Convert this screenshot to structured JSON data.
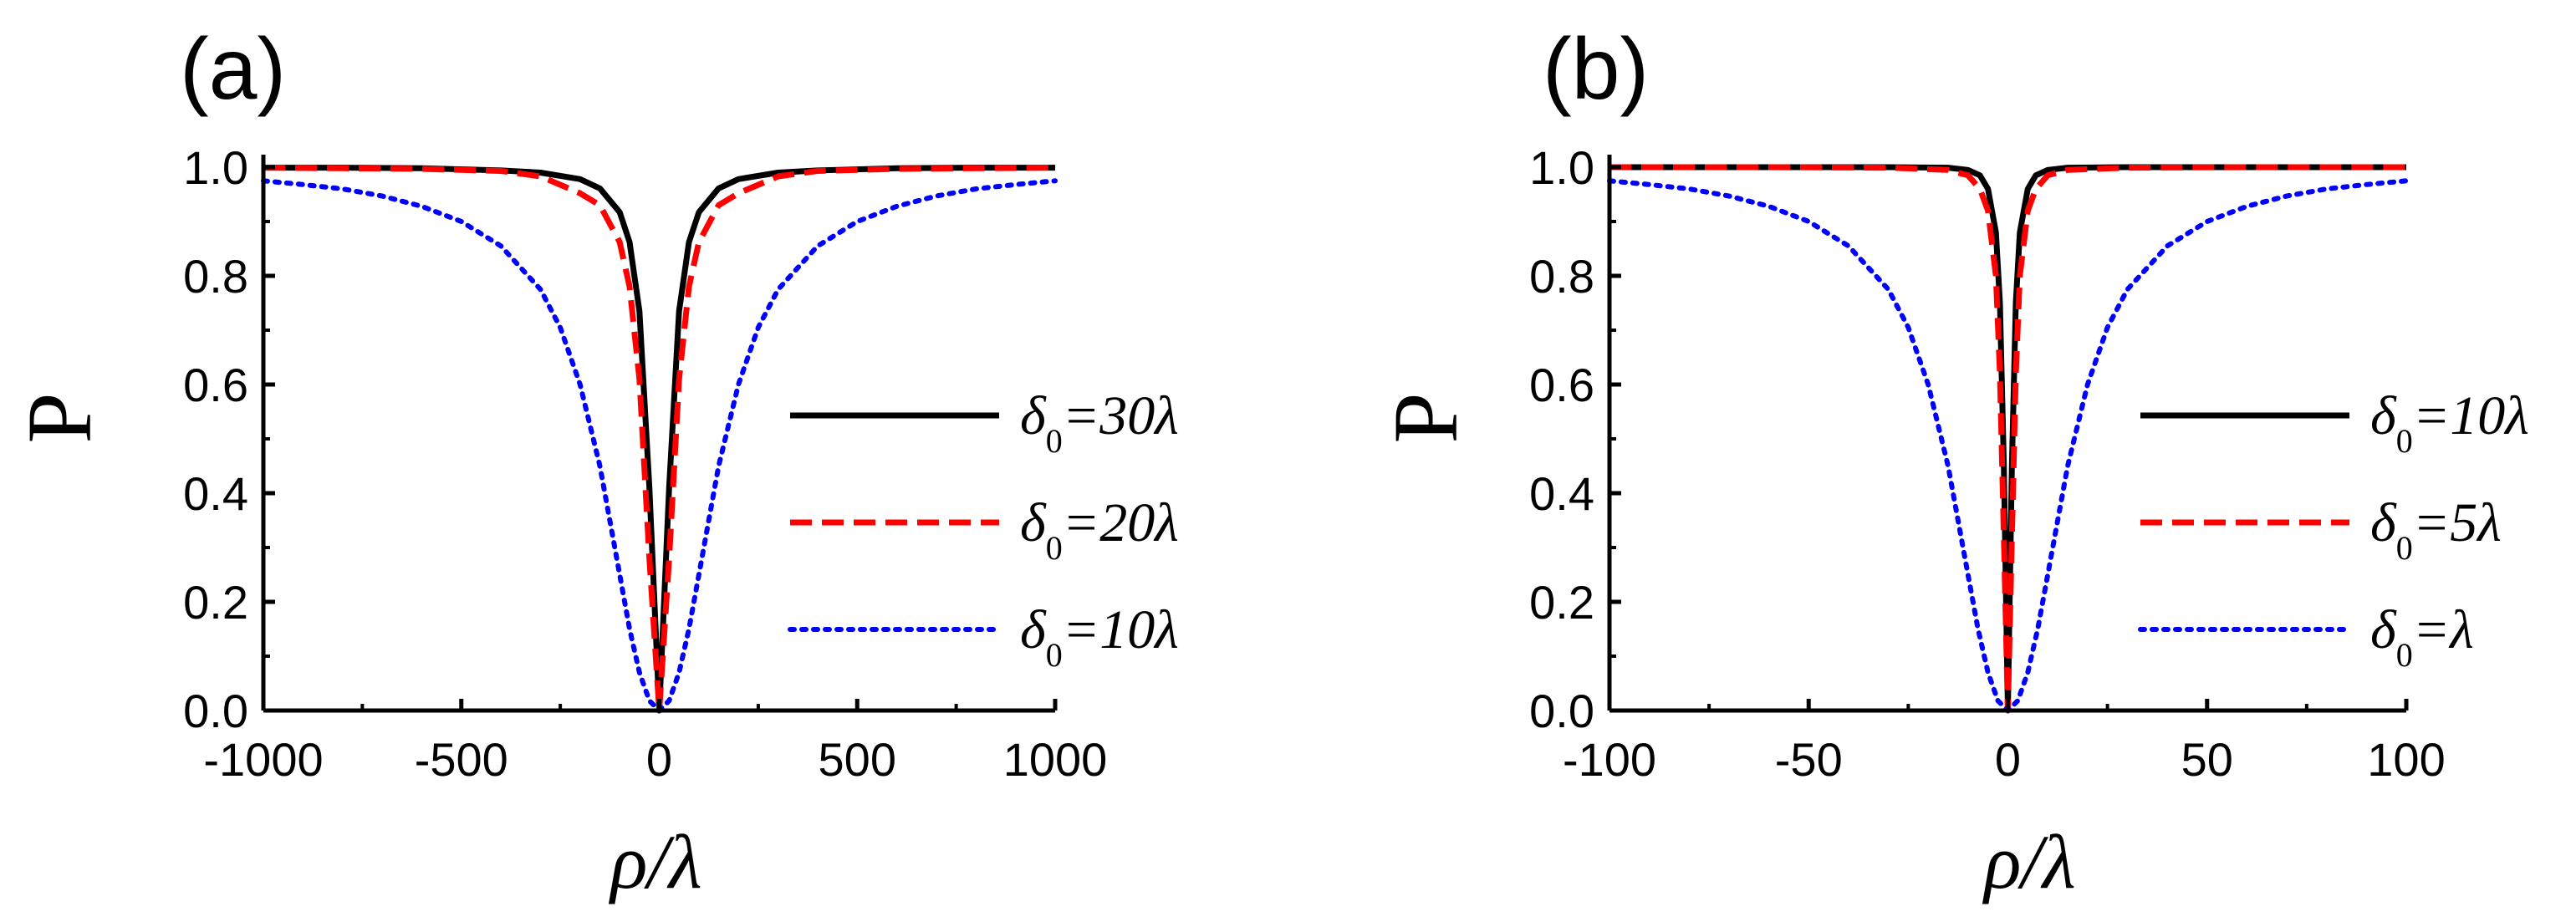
{
  "chart_data": [
    {
      "panel_label": "(a)",
      "type": "line",
      "xlabel": "ρ/λ",
      "ylabel": "P",
      "xlim": [
        -1000,
        1000
      ],
      "ylim": [
        0.0,
        1.0
      ],
      "xticks": [
        -1000,
        -500,
        0,
        500,
        1000
      ],
      "xtick_labels": [
        "-1000",
        "-500",
        "0",
        "500",
        "1000"
      ],
      "yticks": [
        0.0,
        0.2,
        0.4,
        0.6,
        0.8,
        1.0
      ],
      "ytick_labels": [
        "0.0",
        "0.2",
        "0.4",
        "0.6",
        "0.8",
        "1.0"
      ],
      "legend_position": "center-right",
      "series": [
        {
          "name": "δ0=30λ",
          "legend_label": "δ",
          "legend_sub": "0",
          "legend_rest": "=30λ",
          "color": "#000000",
          "style": "solid",
          "delta0": 30,
          "x": [
            -1000,
            -800,
            -600,
            -400,
            -300,
            -200,
            -150,
            -100,
            -75,
            -50,
            -25,
            0,
            25,
            50,
            75,
            100,
            150,
            200,
            300,
            400,
            600,
            800,
            1000
          ],
          "y": [
            0.999,
            0.999,
            0.998,
            0.994,
            0.99,
            0.978,
            0.961,
            0.917,
            0.862,
            0.735,
            0.41,
            0.0,
            0.41,
            0.735,
            0.862,
            0.917,
            0.961,
            0.978,
            0.99,
            0.994,
            0.998,
            0.999,
            0.999
          ]
        },
        {
          "name": "δ0=20λ",
          "legend_label": "δ",
          "legend_sub": "0",
          "legend_rest": "=20λ",
          "color": "#ff0000",
          "style": "dashed",
          "delta0": 20,
          "x": [
            -1000,
            -800,
            -600,
            -400,
            -300,
            -200,
            -150,
            -100,
            -75,
            -50,
            -25,
            0,
            25,
            50,
            75,
            100,
            150,
            200,
            300,
            400,
            600,
            800,
            1000
          ],
          "y": [
            0.999,
            0.998,
            0.997,
            0.993,
            0.983,
            0.952,
            0.93,
            0.862,
            0.78,
            0.61,
            0.28,
            0.0,
            0.28,
            0.61,
            0.78,
            0.862,
            0.93,
            0.952,
            0.983,
            0.993,
            0.997,
            0.998,
            0.999
          ]
        },
        {
          "name": "δ0=10λ",
          "legend_label": "δ",
          "legend_sub": "0",
          "legend_rest": "=10λ",
          "color": "#0000ff",
          "style": "dotted",
          "delta0": 10,
          "x": [
            -1000,
            -900,
            -800,
            -700,
            -600,
            -500,
            -400,
            -300,
            -250,
            -200,
            -150,
            -100,
            -75,
            -50,
            -25,
            0,
            25,
            50,
            75,
            100,
            150,
            200,
            250,
            300,
            400,
            500,
            600,
            700,
            800,
            900,
            1000
          ],
          "y": [
            0.975,
            0.968,
            0.96,
            0.947,
            0.928,
            0.9,
            0.855,
            0.775,
            0.705,
            0.6,
            0.45,
            0.25,
            0.15,
            0.07,
            0.018,
            0.0,
            0.018,
            0.07,
            0.15,
            0.25,
            0.45,
            0.6,
            0.705,
            0.775,
            0.855,
            0.9,
            0.928,
            0.947,
            0.96,
            0.968,
            0.975
          ]
        }
      ]
    },
    {
      "panel_label": "(b)",
      "type": "line",
      "xlabel": "ρ/λ",
      "ylabel": "P",
      "xlim": [
        -100,
        100
      ],
      "ylim": [
        0.0,
        1.0
      ],
      "xticks": [
        -100,
        -50,
        0,
        50,
        100
      ],
      "xtick_labels": [
        "-100",
        "-50",
        "0",
        "50",
        "100"
      ],
      "yticks": [
        0.0,
        0.2,
        0.4,
        0.6,
        0.8,
        1.0
      ],
      "ytick_labels": [
        "0.0",
        "0.2",
        "0.4",
        "0.6",
        "0.8",
        "1.0"
      ],
      "legend_position": "center-right",
      "series": [
        {
          "name": "δ0=10λ",
          "legend_label": "δ",
          "legend_sub": "0",
          "legend_rest": "=10λ",
          "color": "#000000",
          "style": "solid",
          "delta0": 10,
          "x": [
            -100,
            -60,
            -30,
            -15,
            -10,
            -7,
            -5,
            -3,
            -2,
            -1,
            0,
            1,
            2,
            3,
            5,
            7,
            10,
            15,
            30,
            60,
            100
          ],
          "y": [
            1.0,
            1.0,
            1.0,
            0.999,
            0.995,
            0.985,
            0.96,
            0.88,
            0.75,
            0.45,
            0.0,
            0.45,
            0.75,
            0.88,
            0.96,
            0.985,
            0.995,
            0.999,
            1.0,
            1.0,
            1.0
          ]
        },
        {
          "name": "δ0=5λ",
          "legend_label": "δ",
          "legend_sub": "0",
          "legend_rest": "=5λ",
          "color": "#ff0000",
          "style": "dashed",
          "delta0": 5,
          "x": [
            -100,
            -60,
            -30,
            -15,
            -10,
            -7,
            -5,
            -3,
            -2,
            -1,
            0,
            1,
            2,
            3,
            5,
            7,
            10,
            15,
            30,
            60,
            100
          ],
          "y": [
            1.0,
            1.0,
            0.999,
            0.995,
            0.985,
            0.96,
            0.92,
            0.8,
            0.62,
            0.32,
            0.0,
            0.32,
            0.62,
            0.8,
            0.92,
            0.96,
            0.985,
            0.995,
            0.999,
            1.0,
            1.0
          ]
        },
        {
          "name": "δ0=λ",
          "legend_label": "δ",
          "legend_sub": "0",
          "legend_rest": "=λ",
          "color": "#0000ff",
          "style": "dotted",
          "delta0": 1,
          "x": [
            -100,
            -90,
            -80,
            -70,
            -60,
            -50,
            -40,
            -30,
            -25,
            -20,
            -15,
            -10,
            -7.5,
            -5,
            -2.5,
            0,
            2.5,
            5,
            7.5,
            10,
            15,
            20,
            25,
            30,
            40,
            50,
            60,
            70,
            80,
            90,
            100
          ],
          "y": [
            0.975,
            0.968,
            0.96,
            0.947,
            0.928,
            0.9,
            0.855,
            0.775,
            0.705,
            0.6,
            0.45,
            0.25,
            0.15,
            0.07,
            0.018,
            0.0,
            0.018,
            0.07,
            0.15,
            0.25,
            0.45,
            0.6,
            0.705,
            0.775,
            0.855,
            0.9,
            0.928,
            0.947,
            0.96,
            0.968,
            0.975
          ]
        }
      ]
    }
  ]
}
